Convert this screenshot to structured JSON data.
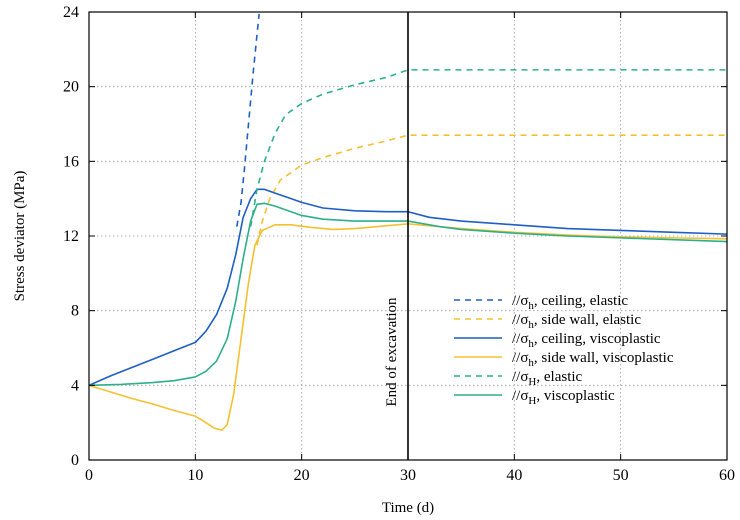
{
  "chart_data": {
    "type": "line",
    "xlabel": "Time (d)",
    "ylabel": "Stress deviator (MPa)",
    "xlim": [
      0,
      60
    ],
    "ylim": [
      0,
      24
    ],
    "xticks": [
      0,
      10,
      20,
      30,
      40,
      50,
      60
    ],
    "yticks": [
      0,
      4,
      8,
      12,
      16,
      20,
      24
    ],
    "grid": true,
    "legend_position": "right",
    "annotations": [
      {
        "text": "End of excavation",
        "x": 30,
        "orientation": "vertical-line"
      }
    ],
    "series": [
      {
        "label_prefix": "//σ",
        "label_sub": "h",
        "label_suffix": ", ceiling, elastic",
        "color": "#1f5fc4",
        "dash": true,
        "points": [
          [
            13.9,
            12.5
          ],
          [
            14.3,
            13.8
          ],
          [
            14.6,
            15.5
          ],
          [
            15.0,
            18.0
          ],
          [
            15.4,
            20.5
          ],
          [
            15.8,
            22.8
          ],
          [
            16.0,
            23.9
          ]
        ]
      },
      {
        "label_prefix": "//σ",
        "label_sub": "h",
        "label_suffix": ", side wall, elastic",
        "color": "#f5c030",
        "dash": true,
        "points": [
          [
            15.8,
            11.5
          ],
          [
            16.3,
            12.8
          ],
          [
            17.0,
            14.0
          ],
          [
            18.0,
            15.0
          ],
          [
            20.0,
            15.8
          ],
          [
            22.0,
            16.2
          ],
          [
            25.0,
            16.7
          ],
          [
            28.0,
            17.1
          ],
          [
            30.0,
            17.4
          ],
          [
            40.0,
            17.4
          ],
          [
            60.0,
            17.4
          ]
        ]
      },
      {
        "label_prefix": "//σ",
        "label_sub": "h",
        "label_suffix": ", ceiling, viscoplastic",
        "color": "#1f5fc4",
        "dash": false,
        "points": [
          [
            0,
            4.0
          ],
          [
            2,
            4.5
          ],
          [
            4,
            4.95
          ],
          [
            6,
            5.4
          ],
          [
            8,
            5.85
          ],
          [
            10,
            6.3
          ],
          [
            11,
            6.9
          ],
          [
            12,
            7.8
          ],
          [
            13,
            9.2
          ],
          [
            13.8,
            11.0
          ],
          [
            14.5,
            13.0
          ],
          [
            15.2,
            14.0
          ],
          [
            15.8,
            14.5
          ],
          [
            16.5,
            14.5
          ],
          [
            17.5,
            14.3
          ],
          [
            19,
            14.0
          ],
          [
            20,
            13.8
          ],
          [
            22,
            13.5
          ],
          [
            25,
            13.35
          ],
          [
            28,
            13.3
          ],
          [
            30,
            13.3
          ],
          [
            32,
            13.0
          ],
          [
            35,
            12.8
          ],
          [
            40,
            12.6
          ],
          [
            45,
            12.4
          ],
          [
            50,
            12.3
          ],
          [
            55,
            12.2
          ],
          [
            60,
            12.1
          ]
        ]
      },
      {
        "label_prefix": "//σ",
        "label_sub": "h",
        "label_suffix": ", side wall, viscoplastic",
        "color": "#f5c030",
        "dash": false,
        "points": [
          [
            0,
            4.0
          ],
          [
            2,
            3.65
          ],
          [
            4,
            3.3
          ],
          [
            6,
            3.0
          ],
          [
            8,
            2.65
          ],
          [
            10,
            2.35
          ],
          [
            11,
            2.0
          ],
          [
            11.8,
            1.7
          ],
          [
            12.5,
            1.6
          ],
          [
            13.0,
            1.9
          ],
          [
            13.6,
            3.5
          ],
          [
            14.3,
            6.5
          ],
          [
            15.0,
            9.5
          ],
          [
            15.6,
            11.5
          ],
          [
            16.3,
            12.3
          ],
          [
            17.5,
            12.6
          ],
          [
            19,
            12.6
          ],
          [
            21,
            12.45
          ],
          [
            23,
            12.35
          ],
          [
            25,
            12.4
          ],
          [
            28,
            12.55
          ],
          [
            30,
            12.65
          ],
          [
            33,
            12.5
          ],
          [
            35,
            12.4
          ],
          [
            40,
            12.2
          ],
          [
            45,
            12.05
          ],
          [
            50,
            11.95
          ],
          [
            55,
            11.9
          ],
          [
            60,
            11.85
          ]
        ]
      },
      {
        "label_prefix": "//σ",
        "label_sub": "H",
        "label_suffix": ", elastic",
        "color": "#2db08a",
        "dash": true,
        "points": [
          [
            15.2,
            12.5
          ],
          [
            15.8,
            14.5
          ],
          [
            16.5,
            16.0
          ],
          [
            17.5,
            17.5
          ],
          [
            18.5,
            18.5
          ],
          [
            20,
            19.1
          ],
          [
            22,
            19.6
          ],
          [
            25,
            20.1
          ],
          [
            28,
            20.5
          ],
          [
            30,
            20.9
          ],
          [
            40,
            20.9
          ],
          [
            60,
            20.9
          ]
        ]
      },
      {
        "label_prefix": "//σ",
        "label_sub": "H",
        "label_suffix": ", viscoplastic",
        "color": "#2db08a",
        "dash": false,
        "points": [
          [
            0,
            4.0
          ],
          [
            3,
            4.05
          ],
          [
            6,
            4.15
          ],
          [
            8,
            4.25
          ],
          [
            10,
            4.45
          ],
          [
            11,
            4.75
          ],
          [
            12,
            5.3
          ],
          [
            13,
            6.5
          ],
          [
            13.8,
            8.5
          ],
          [
            14.5,
            10.8
          ],
          [
            15.2,
            12.8
          ],
          [
            15.8,
            13.7
          ],
          [
            16.5,
            13.75
          ],
          [
            17.5,
            13.6
          ],
          [
            19,
            13.3
          ],
          [
            20,
            13.1
          ],
          [
            22,
            12.9
          ],
          [
            25,
            12.8
          ],
          [
            28,
            12.8
          ],
          [
            30,
            12.8
          ],
          [
            33,
            12.5
          ],
          [
            35,
            12.35
          ],
          [
            40,
            12.15
          ],
          [
            45,
            12.0
          ],
          [
            50,
            11.9
          ],
          [
            55,
            11.8
          ],
          [
            60,
            11.7
          ]
        ]
      }
    ]
  }
}
